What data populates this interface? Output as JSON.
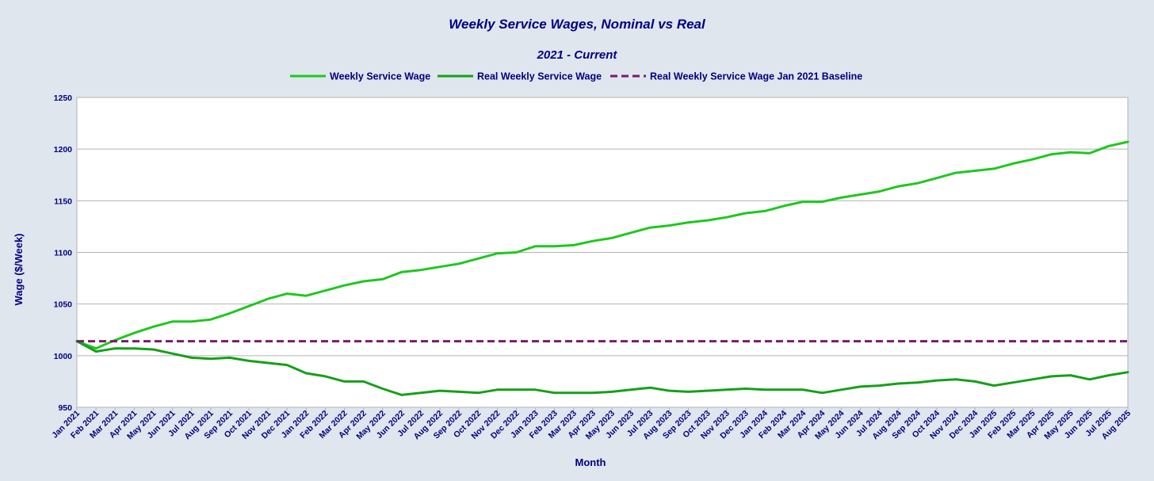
{
  "chart_data": {
    "type": "line",
    "title": "Weekly Service Wages, Nominal vs Real",
    "subtitle": "2021 - Current",
    "xlabel": "Month",
    "ylabel": "Wage ($/Week)",
    "ylim": [
      950,
      1250
    ],
    "yticks": [
      950,
      1000,
      1050,
      1100,
      1150,
      1200,
      1250
    ],
    "grid": true,
    "legend_position": "top",
    "categories": [
      "Jan 2021",
      "Feb 2021",
      "Mar 2021",
      "Apr 2021",
      "May 2021",
      "Jun 2021",
      "Jul 2021",
      "Aug 2021",
      "Sep 2021",
      "Oct 2021",
      "Nov 2021",
      "Dec 2021",
      "Jan 2022",
      "Feb 2022",
      "Mar 2022",
      "Apr 2022",
      "May 2022",
      "Jun 2022",
      "Jul 2022",
      "Aug 2022",
      "Sep 2022",
      "Oct 2022",
      "Nov 2022",
      "Dec 2022",
      "Jan 2023",
      "Feb 2023",
      "Mar 2023",
      "Apr 2023",
      "May 2023",
      "Jun 2023",
      "Jul 2023",
      "Aug 2023",
      "Sep 2023",
      "Oct 2023",
      "Nov 2023",
      "Dec 2023",
      "Jan 2024",
      "Feb 2024",
      "Mar 2024",
      "Apr 2024",
      "May 2024",
      "Jun 2024",
      "Jul 2024",
      "Aug 2024",
      "Sep 2024",
      "Oct 2024",
      "Nov 2024",
      "Dec 2024",
      "Jan 2025",
      "Feb 2025",
      "Mar 2025",
      "Apr 2025",
      "May 2025",
      "Jun 2025",
      "Jul 2025",
      "Aug 2025"
    ],
    "series": [
      {
        "name": "Weekly Service Wage",
        "color": "#1ec81e",
        "style": "solid",
        "values": [
          1014,
          1007,
          1015,
          1022,
          1028,
          1033,
          1033,
          1035,
          1041,
          1048,
          1055,
          1060,
          1058,
          1063,
          1068,
          1072,
          1074,
          1081,
          1083,
          1086,
          1089,
          1094,
          1099,
          1100,
          1106,
          1106,
          1107,
          1111,
          1114,
          1119,
          1124,
          1126,
          1129,
          1131,
          1134,
          1138,
          1140,
          1145,
          1149,
          1149,
          1153,
          1156,
          1159,
          1164,
          1167,
          1172,
          1177,
          1179,
          1181,
          1186,
          1190,
          1195,
          1197,
          1196,
          1203,
          1207
        ]
      },
      {
        "name": "Real Weekly Service  Wage",
        "color": "#15a01a",
        "style": "solid",
        "values": [
          1014,
          1004,
          1007,
          1007,
          1006,
          1002,
          998,
          997,
          998,
          995,
          993,
          991,
          983,
          980,
          975,
          975,
          968,
          962,
          964,
          966,
          965,
          964,
          967,
          967,
          967,
          964,
          964,
          964,
          965,
          967,
          969,
          966,
          965,
          966,
          967,
          968,
          967,
          967,
          967,
          964,
          967,
          970,
          971,
          973,
          974,
          976,
          977,
          975,
          971,
          974,
          977,
          980,
          981,
          977,
          981,
          984
        ]
      },
      {
        "name": "Real Weekly Service Wage Jan 2021 Baseline",
        "color": "#7a1a6e",
        "style": "dashed",
        "values": [
          1014,
          1014,
          1014,
          1014,
          1014,
          1014,
          1014,
          1014,
          1014,
          1014,
          1014,
          1014,
          1014,
          1014,
          1014,
          1014,
          1014,
          1014,
          1014,
          1014,
          1014,
          1014,
          1014,
          1014,
          1014,
          1014,
          1014,
          1014,
          1014,
          1014,
          1014,
          1014,
          1014,
          1014,
          1014,
          1014,
          1014,
          1014,
          1014,
          1014,
          1014,
          1014,
          1014,
          1014,
          1014,
          1014,
          1014,
          1014,
          1014,
          1014,
          1014,
          1014,
          1014,
          1014,
          1014,
          1014
        ]
      }
    ]
  }
}
